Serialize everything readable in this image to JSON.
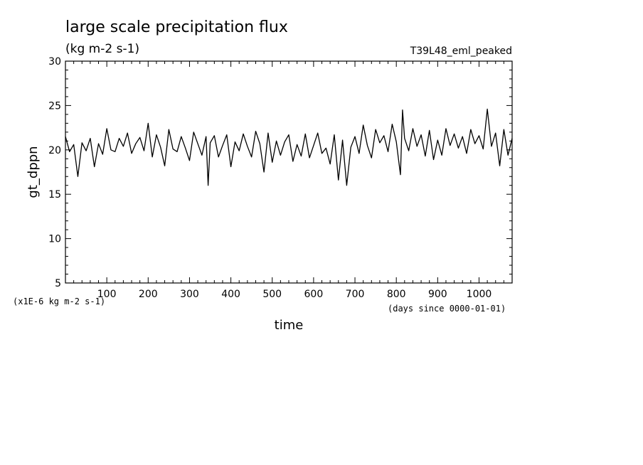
{
  "chart_data": {
    "type": "line",
    "title": "large scale precipitation flux",
    "subtitle": "(kg m-2 s-1)",
    "run_tag": "T39L48_eml_peaked",
    "xlabel": "time",
    "ylabel": "gt_dppn",
    "y_unit_note": "(x1E-6 kg m-2 s-1)",
    "x_unit_note": "(days since 0000-01-01)",
    "xlim": [
      0,
      1080
    ],
    "ylim": [
      5,
      30
    ],
    "x_ticks": [
      100,
      200,
      300,
      400,
      500,
      600,
      700,
      800,
      900,
      1000
    ],
    "y_ticks": [
      5,
      10,
      15,
      20,
      25,
      30
    ],
    "line_color": "#000000",
    "series": [
      {
        "x": [
          0,
          10,
          20,
          30,
          40,
          50,
          60,
          70,
          80,
          90,
          100,
          110,
          120,
          130,
          140,
          150,
          160,
          170,
          180,
          190,
          200,
          210,
          220,
          230,
          240,
          250,
          260,
          270,
          280,
          290,
          300,
          310,
          320,
          330,
          340,
          345,
          350,
          360,
          370,
          380,
          390,
          400,
          410,
          420,
          430,
          440,
          450,
          460,
          470,
          480,
          490,
          500,
          510,
          520,
          530,
          540,
          550,
          560,
          570,
          580,
          590,
          600,
          610,
          620,
          630,
          640,
          650,
          660,
          670,
          680,
          690,
          700,
          710,
          720,
          730,
          740,
          750,
          760,
          770,
          780,
          790,
          800,
          810,
          815,
          820,
          830,
          840,
          850,
          860,
          870,
          880,
          890,
          900,
          910,
          920,
          930,
          940,
          950,
          960,
          970,
          980,
          990,
          1000,
          1010,
          1020,
          1030,
          1040,
          1050,
          1060,
          1070,
          1080
        ],
        "values": [
          21.5,
          19.8,
          20.6,
          17.0,
          20.8,
          19.9,
          21.3,
          18.1,
          20.7,
          19.5,
          22.4,
          20.0,
          19.8,
          21.3,
          20.4,
          21.9,
          19.6,
          20.7,
          21.4,
          19.9,
          23.0,
          19.2,
          21.7,
          20.3,
          18.2,
          22.3,
          20.1,
          19.8,
          21.5,
          20.2,
          18.8,
          22.0,
          20.7,
          19.4,
          21.5,
          16.0,
          20.8,
          21.6,
          19.2,
          20.5,
          21.7,
          18.1,
          20.9,
          19.9,
          21.8,
          20.4,
          19.2,
          22.1,
          20.7,
          17.5,
          21.9,
          18.6,
          21.0,
          19.4,
          20.9,
          21.7,
          18.7,
          20.6,
          19.3,
          21.8,
          19.1,
          20.5,
          21.9,
          19.6,
          20.2,
          18.4,
          21.7,
          16.6,
          21.1,
          16.0,
          20.3,
          21.5,
          19.6,
          22.8,
          20.5,
          19.1,
          22.3,
          20.8,
          21.6,
          19.8,
          22.9,
          20.9,
          17.2,
          24.5,
          21.3,
          19.9,
          22.4,
          20.4,
          21.7,
          19.3,
          22.2,
          18.9,
          21.1,
          19.4,
          22.4,
          20.5,
          21.8,
          20.2,
          21.5,
          19.6,
          22.3,
          20.7,
          21.6,
          20.1,
          24.6,
          20.4,
          21.9,
          18.2,
          22.3,
          19.4,
          21.3
        ]
      }
    ]
  }
}
